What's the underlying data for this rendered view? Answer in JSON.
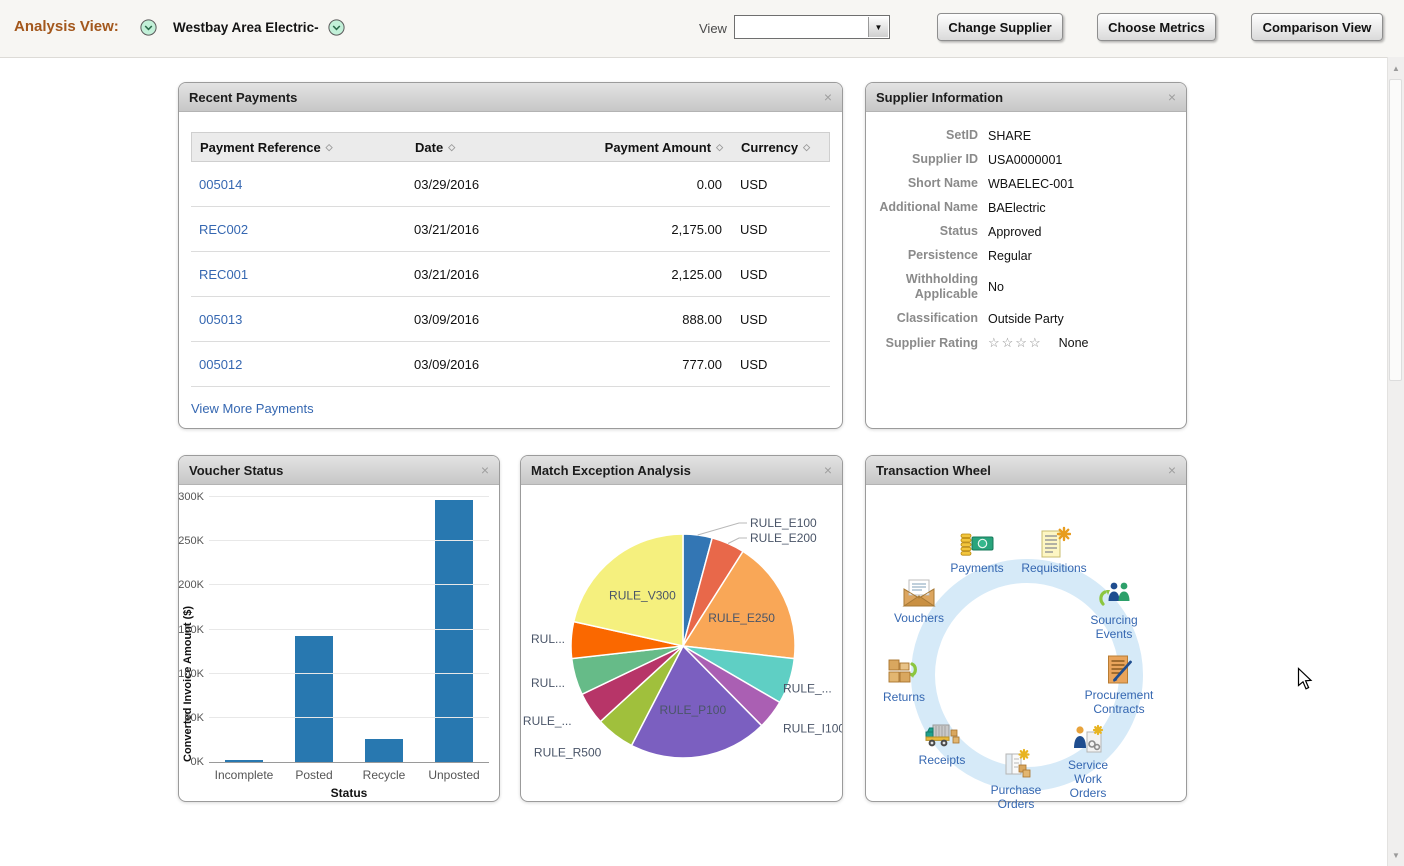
{
  "ui": {
    "close_glyph": "×",
    "select_arrow": "▼",
    "scroll_up": "▲",
    "scroll_down": "▼",
    "sort_icon": "◇"
  },
  "header": {
    "analysis_view_label": "Analysis View:",
    "supplier_name": "Westbay Area Electric-",
    "view_label": "View",
    "view_value": "",
    "buttons": [
      {
        "label": "Change Supplier"
      },
      {
        "label": "Choose Metrics"
      },
      {
        "label": "Comparison View"
      }
    ]
  },
  "recent_payments": {
    "title": "Recent Payments",
    "columns": [
      "Payment Reference",
      "Date",
      "Payment Amount",
      "Currency"
    ],
    "rows": [
      {
        "ref": "005014",
        "date": "03/29/2016",
        "amount": "0.00",
        "currency": "USD"
      },
      {
        "ref": "REC002",
        "date": "03/21/2016",
        "amount": "2,175.00",
        "currency": "USD"
      },
      {
        "ref": "REC001",
        "date": "03/21/2016",
        "amount": "2,125.00",
        "currency": "USD"
      },
      {
        "ref": "005013",
        "date": "03/09/2016",
        "amount": "888.00",
        "currency": "USD"
      },
      {
        "ref": "005012",
        "date": "03/09/2016",
        "amount": "777.00",
        "currency": "USD"
      }
    ],
    "view_more_label": "View More Payments"
  },
  "supplier_information": {
    "title": "Supplier Information",
    "fields": [
      {
        "label": "SetID",
        "value": "SHARE"
      },
      {
        "label": "Supplier ID",
        "value": "USA0000001"
      },
      {
        "label": "Short Name",
        "value": "WBAELEC-001"
      },
      {
        "label": "Additional Name",
        "value": "BAElectric"
      },
      {
        "label": "Status",
        "value": "Approved"
      },
      {
        "label": "Persistence",
        "value": "Regular"
      },
      {
        "label": "Withholding Applicable",
        "value": "No"
      },
      {
        "label": "Classification",
        "value": "Outside Party"
      },
      {
        "label": "Supplier Rating",
        "value": "None",
        "stars": "☆☆☆☆"
      }
    ]
  },
  "chart_data": [
    {
      "type": "bar",
      "title": "Voucher Status",
      "categories": [
        "Incomplete",
        "Posted",
        "Recycle",
        "Unposted"
      ],
      "values": [
        2800,
        142500,
        26000,
        297000
      ],
      "xlabel": "Status",
      "ylabel": "Converted Invoice Amount ($)",
      "ylim": [
        0,
        300000
      ],
      "yticks": [
        "0K",
        "50K",
        "100K",
        "150K",
        "200K",
        "250K",
        "300K"
      ],
      "bar_color": "#2878b0",
      "grid": true
    },
    {
      "type": "pie",
      "title": "Match Exception Analysis",
      "slices": [
        {
          "label": "RULE_E100",
          "pct": 4.2,
          "color": "#3376b4"
        },
        {
          "label": "RULE_E200",
          "pct": 4.8,
          "color": "#e8684a"
        },
        {
          "label": "RULE_E250",
          "pct": 17.8,
          "color": "#f9a757"
        },
        {
          "label": "RULE_...",
          "pct": 6.6,
          "color": "#5fcfc4"
        },
        {
          "label": "RULE_I100",
          "pct": 4.2,
          "color": "#aa5fb3"
        },
        {
          "label": "RULE_P100",
          "pct": 20.0,
          "color": "#7b5fc0"
        },
        {
          "label": "RULE_R500",
          "pct": 5.6,
          "color": "#a0c03c"
        },
        {
          "label": "RULE_...",
          "pct": 4.7,
          "color": "#b73568"
        },
        {
          "label": "RUL...",
          "pct": 5.3,
          "color": "#66bb88"
        },
        {
          "label": "RUL...",
          "pct": 5.3,
          "color": "#fa6800"
        },
        {
          "label": "RULE_V300",
          "pct": 21.5,
          "color": "#f5f07e"
        }
      ]
    }
  ],
  "transaction_wheel": {
    "title": "Transaction Wheel",
    "items": [
      {
        "label": "Payments",
        "icon": "payments-icon"
      },
      {
        "label": "Requisitions",
        "icon": "requisitions-icon"
      },
      {
        "label": "Sourcing Events",
        "icon": "sourcing-events-icon"
      },
      {
        "label": "Procurement Contracts",
        "icon": "procurement-contracts-icon"
      },
      {
        "label": "Service Work Orders",
        "icon": "service-work-orders-icon"
      },
      {
        "label": "Purchase Orders",
        "icon": "purchase-orders-icon"
      },
      {
        "label": "Receipts",
        "icon": "receipts-icon"
      },
      {
        "label": "Returns",
        "icon": "returns-icon"
      },
      {
        "label": "Vouchers",
        "icon": "vouchers-icon"
      }
    ]
  }
}
